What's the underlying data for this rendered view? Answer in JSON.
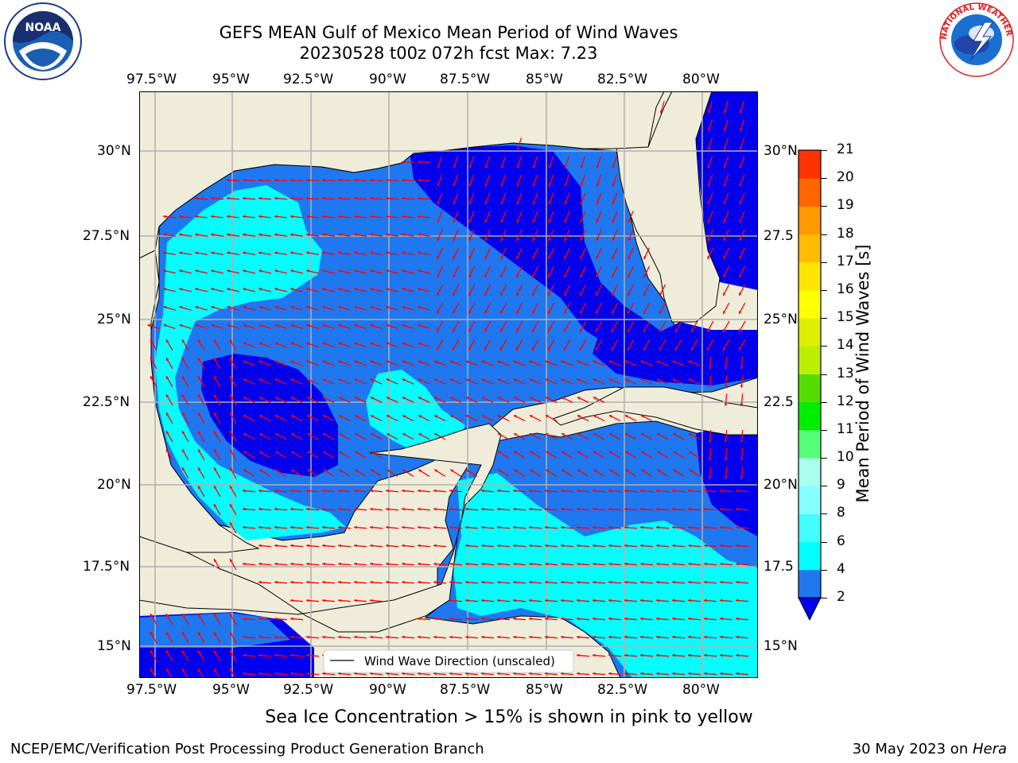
{
  "header": {
    "title_line1": "GEFS MEAN Gulf of Mexico Mean Period of Wind Waves",
    "title_line2": "20230528 t00z 072h fcst   Max: 7.23"
  },
  "logos": {
    "left": "NOAA",
    "right": "NATIONAL WEATHER SERVICE"
  },
  "map": {
    "lon_ticks": [
      "97.5°W",
      "95°W",
      "92.5°W",
      "90°W",
      "87.5°W",
      "85°W",
      "82.5°W",
      "80°W"
    ],
    "lat_ticks_left": [
      "30°N",
      "27.5°N",
      "25°N",
      "22.5°N",
      "20°N",
      "17.5°N",
      "15°N"
    ],
    "lat_ticks_right": [
      "30°N",
      "27.5",
      "25°N",
      "22.5",
      "20°N",
      "17.5",
      "15°N"
    ],
    "legend_label": "Wind Wave Direction (unscaled)",
    "colors": {
      "land": "#efedda",
      "c2": "#1f78f0",
      "c4": "#00ffff",
      "c0": "#0000ee",
      "arrow": "#ff0000",
      "grid": "#b0b0b0"
    }
  },
  "colorbar": {
    "label": "Mean Period of Wind Waves [s]",
    "ticks": [
      "2",
      "4",
      "6",
      "8",
      "9",
      "10",
      "11",
      "12",
      "13",
      "14",
      "15",
      "16",
      "17",
      "18",
      "19",
      "20",
      "21"
    ],
    "colors": [
      "#1f78f0",
      "#00ffff",
      "#44ffff",
      "#88ffff",
      "#aaffee",
      "#55ff77",
      "#00ee00",
      "#55dd00",
      "#bbee00",
      "#ddee00",
      "#ffff00",
      "#ffe400",
      "#ffbb00",
      "#ff9900",
      "#ff6600",
      "#ff3300",
      "#ff0000"
    ]
  },
  "note": "Sea Ice Concentration > 15% is shown in pink to yellow",
  "footer": {
    "left": "NCEP/EMC/Verification Post Processing Product Generation Branch",
    "right_date": "30 May 2023 on ",
    "right_host": "Hera"
  }
}
